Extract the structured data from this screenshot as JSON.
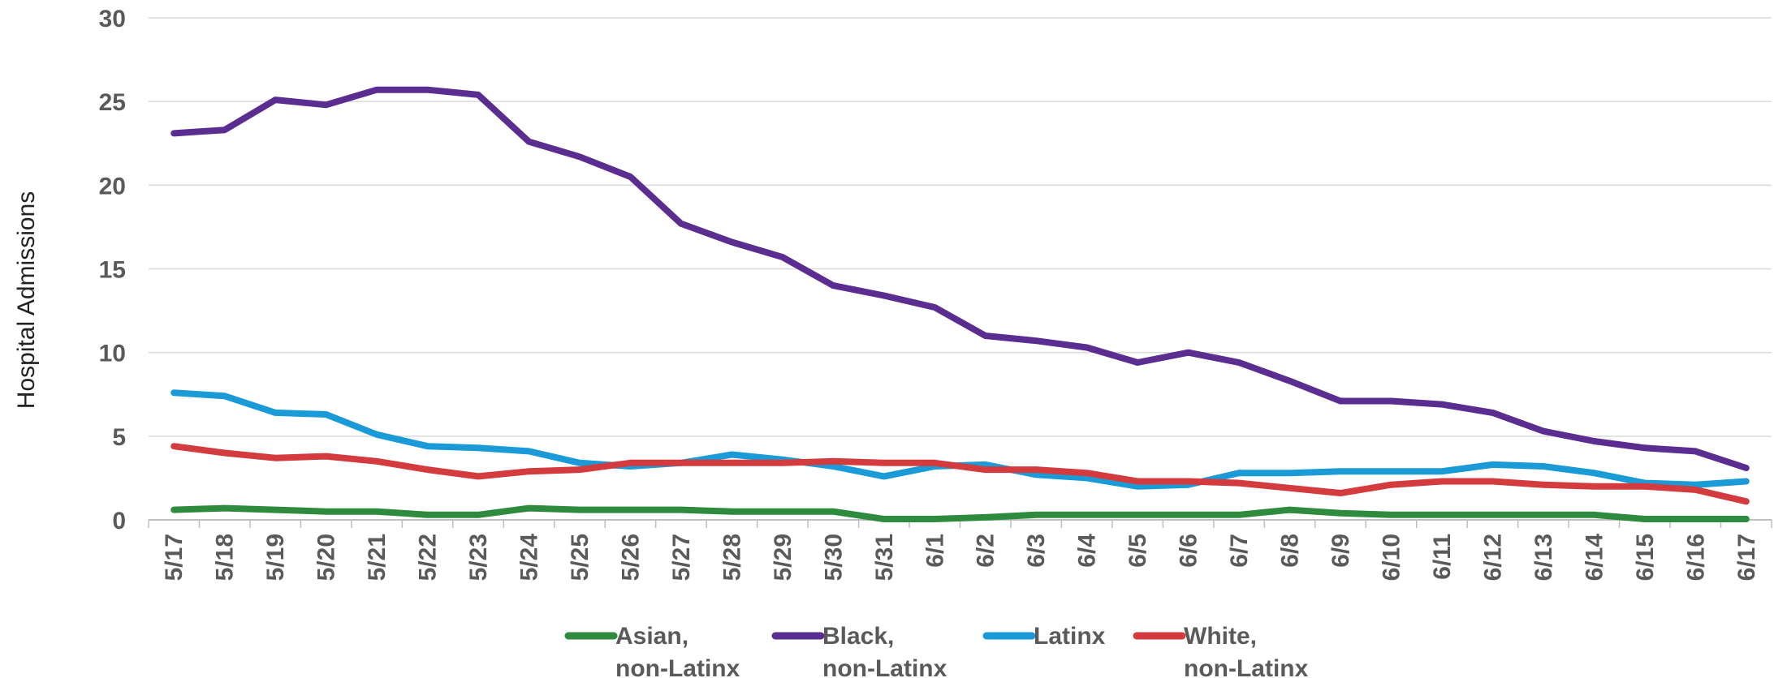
{
  "chart_data": {
    "type": "line",
    "ylabel": "Hospital Admissions",
    "ylim": [
      0,
      30
    ],
    "yticks": [
      0,
      5,
      10,
      15,
      20,
      25,
      30
    ],
    "grid": true,
    "legend_position": "bottom",
    "categories": [
      "5/17",
      "5/18",
      "5/19",
      "5/20",
      "5/21",
      "5/22",
      "5/23",
      "5/24",
      "5/25",
      "5/26",
      "5/27",
      "5/28",
      "5/29",
      "5/30",
      "5/31",
      "6/1",
      "6/2",
      "6/3",
      "6/4",
      "6/5",
      "6/6",
      "6/7",
      "6/8",
      "6/9",
      "6/10",
      "6/11",
      "6/12",
      "6/13",
      "6/14",
      "6/15",
      "6/16",
      "6/17"
    ],
    "series": [
      {
        "name": "Asian, non-Latinx",
        "legend_lines": [
          "Asian,",
          "non-Latinx"
        ],
        "color": "#2e8b3e",
        "values": [
          0.6,
          0.7,
          0.6,
          0.5,
          0.5,
          0.3,
          0.3,
          0.7,
          0.6,
          0.6,
          0.6,
          0.5,
          0.5,
          0.5,
          0.05,
          0.05,
          0.15,
          0.3,
          0.3,
          0.3,
          0.3,
          0.3,
          0.6,
          0.4,
          0.3,
          0.3,
          0.3,
          0.3,
          0.3,
          0.05,
          0.05,
          0.05
        ]
      },
      {
        "name": "Black, non-Latinx",
        "legend_lines": [
          "Black,",
          "non-Latinx"
        ],
        "color": "#5b2d91",
        "values": [
          23.1,
          23.3,
          25.1,
          24.8,
          25.7,
          25.7,
          25.4,
          22.6,
          21.7,
          20.5,
          17.7,
          16.6,
          15.7,
          14.0,
          13.4,
          12.7,
          11.0,
          10.7,
          10.3,
          9.4,
          10.0,
          9.4,
          8.3,
          7.1,
          7.1,
          6.9,
          6.4,
          5.3,
          4.7,
          4.3,
          4.1,
          3.1
        ]
      },
      {
        "name": "Latinx",
        "legend_lines": [
          "Latinx"
        ],
        "color": "#1a9ad6",
        "values": [
          7.6,
          7.4,
          6.4,
          6.3,
          5.1,
          4.4,
          4.3,
          4.1,
          3.4,
          3.2,
          3.4,
          3.9,
          3.6,
          3.2,
          2.6,
          3.2,
          3.3,
          2.7,
          2.5,
          2.0,
          2.1,
          2.8,
          2.8,
          2.9,
          2.9,
          2.9,
          3.3,
          3.2,
          2.8,
          2.2,
          2.1,
          2.3
        ]
      },
      {
        "name": "White, non-Latinx",
        "legend_lines": [
          "White,",
          "non-Latinx"
        ],
        "color": "#d33b3e",
        "values": [
          4.4,
          4.0,
          3.7,
          3.8,
          3.5,
          3.0,
          2.6,
          2.9,
          3.0,
          3.4,
          3.4,
          3.4,
          3.4,
          3.5,
          3.4,
          3.4,
          3.0,
          3.0,
          2.8,
          2.3,
          2.3,
          2.2,
          1.9,
          1.6,
          2.1,
          2.3,
          2.3,
          2.1,
          2.0,
          2.0,
          1.8,
          1.1
        ]
      }
    ]
  }
}
